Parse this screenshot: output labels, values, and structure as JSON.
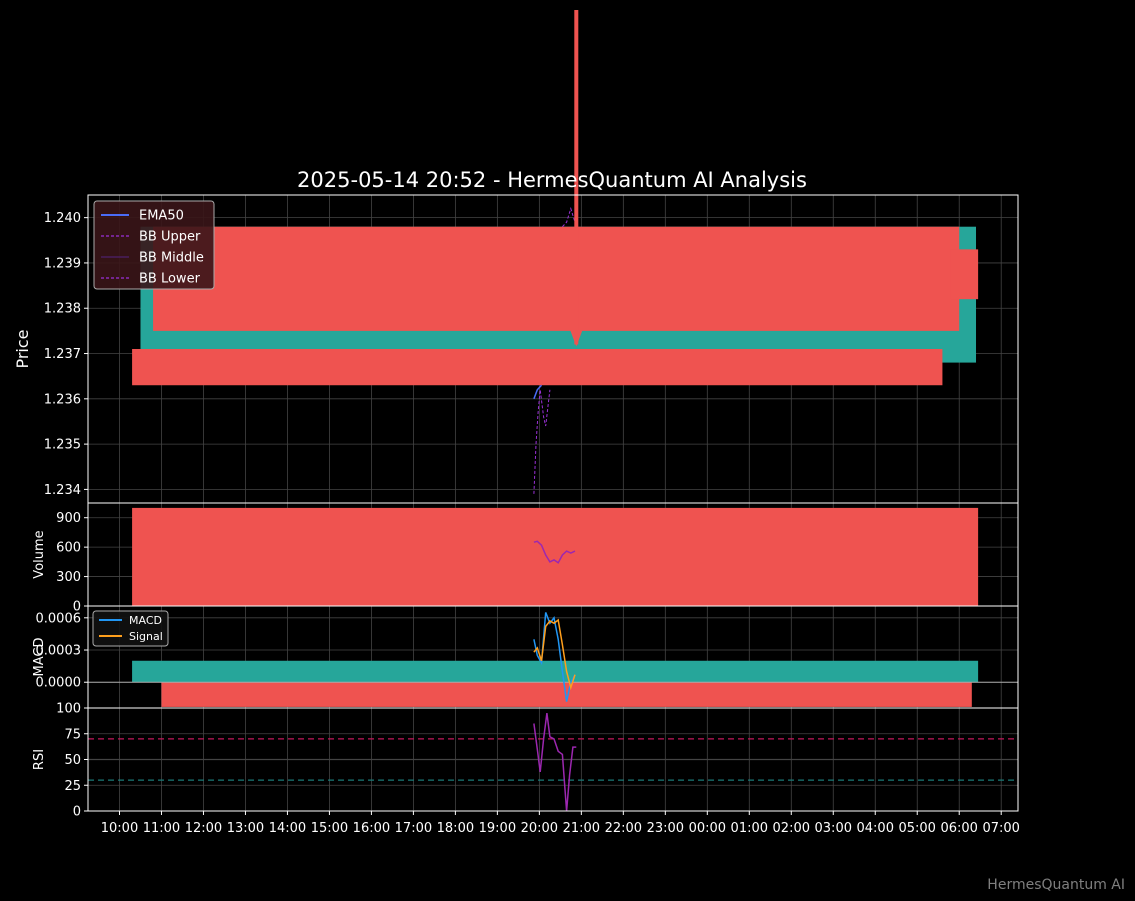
{
  "title": "2025-05-14 20:52 - HermesQuantum AI Analysis",
  "watermark": "HermesQuantum AI",
  "colors": {
    "up": "#26a69a",
    "down": "#ef5350",
    "ema50": "#4a6cf7",
    "bb": "#9b30d9",
    "macd": "#2196f3",
    "signal": "#ff9f1c",
    "rsi": "#9c27b0",
    "grid": "#444444",
    "overbought": "#c2185b",
    "oversold": "#1a7a78"
  },
  "chart_data": [
    {
      "panel": "price",
      "type": "line",
      "ylabel": "Price",
      "ylim": [
        1.2337,
        1.2405
      ],
      "yticks": [
        "1.234",
        "1.235",
        "1.236",
        "1.237",
        "1.238",
        "1.239",
        "1.240"
      ],
      "grid": true,
      "legend_position": "top-left",
      "legend": [
        "EMA50",
        "BB Upper",
        "BB Middle",
        "BB Lower"
      ],
      "x_range_hours": [
        9.25,
        31.4
      ],
      "xticks": [
        "10:00",
        "11:00",
        "12:00",
        "13:00",
        "14:00",
        "15:00",
        "16:00",
        "17:00",
        "18:00",
        "19:00",
        "20:00",
        "21:00",
        "22:00",
        "23:00",
        "00:00",
        "01:00",
        "02:00",
        "03:00",
        "04:00",
        "05:00",
        "06:00",
        "07:00"
      ],
      "bands": [
        {
          "color": "up",
          "x": [
            10.5,
            30.4
          ],
          "y": [
            1.2368,
            1.2398
          ]
        },
        {
          "color": "down",
          "x": [
            10.3,
            29.6
          ],
          "y": [
            1.2363,
            1.2371
          ]
        },
        {
          "color": "down",
          "x": [
            10.8,
            30.0
          ],
          "y": [
            1.2375,
            1.2398
          ]
        },
        {
          "color": "down",
          "x": [
            29.8,
            30.45
          ],
          "y": [
            1.2382,
            1.2393
          ]
        }
      ],
      "spike": {
        "x": 20.88,
        "y": [
          1.2372,
          1.2445
        ]
      },
      "series": [
        {
          "name": "EMA50",
          "x": [
            19.87,
            19.95,
            20.05
          ],
          "y": [
            1.236,
            1.2362,
            1.2363
          ]
        },
        {
          "name": "BB Upper",
          "x": [
            20.55,
            20.65,
            20.75,
            20.85
          ],
          "y": [
            1.2398,
            1.2399,
            1.2402,
            1.2399
          ]
        },
        {
          "name": "BB Lower",
          "x": [
            19.87,
            19.92,
            19.97,
            20.02,
            20.1,
            20.15,
            20.2,
            20.25
          ],
          "y": [
            1.2339,
            1.235,
            1.2357,
            1.2362,
            1.2356,
            1.2354,
            1.2358,
            1.2362
          ]
        }
      ]
    },
    {
      "panel": "volume",
      "type": "bar",
      "ylabel": "Volume",
      "ylim": [
        0,
        1050
      ],
      "yticks": [
        "0",
        "300",
        "600",
        "900"
      ],
      "bars": {
        "color": "down",
        "x": [
          10.3,
          30.45
        ],
        "height": 1000
      },
      "series": [
        {
          "name": "Volume MA",
          "x": [
            19.87,
            19.95,
            20.05,
            20.15,
            20.25,
            20.35,
            20.45,
            20.55,
            20.65,
            20.75,
            20.85
          ],
          "y": [
            650,
            660,
            620,
            520,
            450,
            470,
            440,
            520,
            560,
            540,
            560
          ]
        }
      ]
    },
    {
      "panel": "macd",
      "type": "line",
      "ylabel": "MACD",
      "ylim": [
        -0.00024,
        0.00071
      ],
      "yticks": [
        "0.0000",
        "0.0003",
        "0.0006"
      ],
      "legend_position": "top-left",
      "legend": [
        "MACD",
        "Signal"
      ],
      "hist_bands": [
        {
          "color": "up",
          "x": [
            10.3,
            30.45
          ],
          "y": [
            0.0,
            0.0002
          ]
        },
        {
          "color": "down",
          "x": [
            11.0,
            30.3
          ],
          "y": [
            -0.00023,
            0.0
          ]
        }
      ],
      "series": [
        {
          "name": "MACD",
          "x": [
            19.87,
            19.95,
            20.05,
            20.15,
            20.25,
            20.35,
            20.45,
            20.55,
            20.65,
            20.75,
            20.85
          ],
          "y": [
            0.0004,
            0.00025,
            0.00018,
            0.00065,
            0.00055,
            0.0006,
            0.0004,
            0.0001,
            -0.00018,
            0.0,
            7e-05
          ]
        },
        {
          "name": "Signal",
          "x": [
            19.87,
            19.95,
            20.05,
            20.15,
            20.25,
            20.35,
            20.45,
            20.55,
            20.65,
            20.75,
            20.85
          ],
          "y": [
            0.00028,
            0.00032,
            0.0002,
            0.00052,
            0.00057,
            0.00055,
            0.00058,
            0.00035,
            0.0001,
            -5e-05,
            7e-05
          ]
        }
      ]
    },
    {
      "panel": "rsi",
      "type": "line",
      "ylabel": "RSI",
      "ylim": [
        0,
        100
      ],
      "yticks": [
        "0",
        "25",
        "50",
        "75",
        "100"
      ],
      "hlines": [
        {
          "y": 70,
          "color": "overbought"
        },
        {
          "y": 50,
          "color": "grid"
        },
        {
          "y": 30,
          "color": "oversold"
        }
      ],
      "series": [
        {
          "name": "RSI",
          "x": [
            19.87,
            19.95,
            20.02,
            20.1,
            20.18,
            20.25,
            20.35,
            20.45,
            20.55,
            20.65,
            20.72,
            20.8,
            20.88
          ],
          "y": [
            85,
            60,
            38,
            70,
            95,
            72,
            70,
            58,
            55,
            0,
            35,
            62,
            62
          ]
        }
      ]
    }
  ]
}
